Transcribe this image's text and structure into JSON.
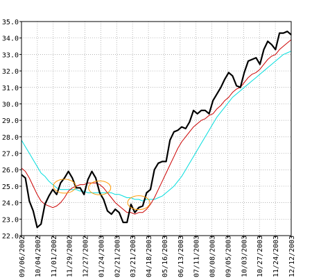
{
  "chart_data": {
    "type": "line",
    "title": "",
    "xlabel": "",
    "ylabel": "",
    "ylim": [
      22.0,
      35.0
    ],
    "y_ticks": [
      "22.0",
      "23.0",
      "24.0",
      "25.0",
      "26.0",
      "27.0",
      "28.0",
      "29.0",
      "30.0",
      "31.0",
      "32.0",
      "33.0",
      "34.0",
      "35.0"
    ],
    "x_ticks": [
      "09/06/2002",
      "10/04/2002",
      "11/01/2002",
      "11/29/2002",
      "12/27/2002",
      "01/24/2003",
      "02/21/2003",
      "03/21/2003",
      "04/18/2003",
      "05/16/2003",
      "06/13/2003",
      "07/11/2003",
      "08/08/2003",
      "09/05/2003",
      "10/03/2003",
      "10/27/2003",
      "11/24/2003",
      "12/12/2003"
    ],
    "grid": "dotted",
    "legend": "none",
    "x_start": "09/06/2002",
    "x_step": "weekly",
    "series": [
      {
        "color": "#000000",
        "values": [
          25.7,
          25.5,
          24.1,
          23.5,
          22.5,
          22.7,
          23.9,
          24.4,
          24.8,
          24.5,
          25.2,
          25.5,
          25.9,
          25.5,
          24.9,
          24.9,
          24.5,
          25.4,
          25.9,
          25.5,
          24.6,
          24.2,
          23.5,
          23.3,
          23.6,
          23.4,
          22.8,
          22.8,
          23.9,
          23.4,
          23.7,
          23.8,
          24.6,
          24.8,
          26.0,
          26.4,
          26.5,
          26.5,
          27.8,
          28.3,
          28.4,
          28.6,
          28.5,
          28.9,
          29.6,
          29.4,
          29.6,
          29.6,
          29.4,
          30.2,
          30.6,
          31.0,
          31.5,
          31.9,
          31.7,
          31.1,
          31.0,
          31.9,
          32.6,
          32.7,
          32.8,
          32.4,
          33.3,
          33.8,
          33.6,
          33.3,
          34.3,
          34.3,
          34.4,
          34.2
        ]
      },
      {
        "color": "#cc0000",
        "values": [
          26.1,
          25.9,
          25.5,
          25.0,
          24.5,
          24.1,
          23.9,
          23.8,
          23.7,
          23.8,
          24.0,
          24.3,
          24.7,
          24.9,
          25.0,
          25.1,
          25.1,
          25.2,
          25.2,
          25.2,
          25.1,
          24.9,
          24.6,
          24.3,
          24.0,
          23.8,
          23.6,
          23.4,
          23.4,
          23.3,
          23.4,
          23.4,
          23.6,
          23.9,
          24.3,
          24.8,
          25.3,
          25.8,
          26.3,
          26.8,
          27.3,
          27.7,
          28.0,
          28.3,
          28.6,
          28.8,
          29.0,
          29.1,
          29.3,
          29.4,
          29.7,
          29.9,
          30.2,
          30.4,
          30.7,
          30.9,
          31.0,
          31.3,
          31.6,
          31.8,
          31.9,
          32.1,
          32.4,
          32.7,
          32.9,
          33.0,
          33.3,
          33.5,
          33.7,
          33.9
        ]
      },
      {
        "color": "#00dddd",
        "values": [
          27.8,
          27.4,
          27.0,
          26.6,
          26.2,
          25.8,
          25.6,
          25.3,
          25.1,
          24.9,
          24.8,
          24.8,
          24.8,
          24.8,
          24.8,
          24.7,
          24.7,
          24.6,
          24.6,
          24.6,
          24.6,
          24.6,
          24.6,
          24.6,
          24.5,
          24.5,
          24.4,
          24.3,
          24.3,
          24.2,
          24.2,
          24.1,
          24.2,
          24.2,
          24.2,
          24.3,
          24.4,
          24.6,
          24.8,
          25.0,
          25.3,
          25.6,
          26.0,
          26.4,
          26.8,
          27.2,
          27.6,
          28.0,
          28.4,
          28.8,
          29.2,
          29.5,
          29.8,
          30.1,
          30.4,
          30.6,
          30.8,
          31.0,
          31.2,
          31.4,
          31.6,
          31.8,
          32.0,
          32.2,
          32.4,
          32.6,
          32.8,
          33.0,
          33.1,
          33.2
        ]
      }
    ],
    "annotations": [
      {
        "type": "ellipse",
        "color": "#ff9900",
        "x_index": 11,
        "y": 25.0
      },
      {
        "type": "ellipse",
        "color": "#ff9900",
        "x_index": 20,
        "y": 24.9
      },
      {
        "type": "ellipse",
        "color": "#ff9900",
        "x_index": 30,
        "y": 24.0
      }
    ]
  }
}
